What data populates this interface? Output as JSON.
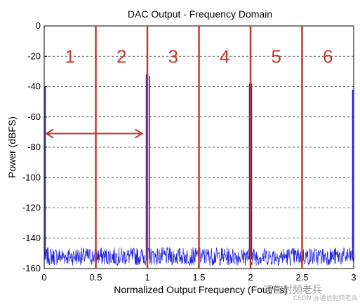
{
  "chart_data": {
    "type": "line",
    "title": "DAC Output - Frequency Domain",
    "xlabel": "Normalized Output Frequency (Fout/Fs)",
    "ylabel": "Power (dBFS)",
    "xlim": [
      0,
      3
    ],
    "ylim": [
      -160,
      0
    ],
    "x_ticks": [
      "0",
      "0.5",
      "1",
      "1.5",
      "2",
      "2.5",
      "3"
    ],
    "y_ticks": [
      "0",
      "-20",
      "-40",
      "-60",
      "-80",
      "-100",
      "-120",
      "-140",
      "-160"
    ],
    "grid": true,
    "series_color": "#1f1fd6",
    "noise_floor": [
      -160,
      -146
    ],
    "spurs": [
      {
        "x": 0.01,
        "y": -40
      },
      {
        "x": 0.99,
        "y": -32
      },
      {
        "x": 1.02,
        "y": -33
      },
      {
        "x": 1.99,
        "y": -38
      },
      {
        "x": 2.01,
        "y": -38
      },
      {
        "x": 2.99,
        "y": -42
      }
    ],
    "zone_boundaries": [
      0.5,
      1,
      1.5,
      2,
      2.5
    ],
    "boundary_color": "#c0392b",
    "zone_labels": [
      {
        "text": "1",
        "x": 0.25
      },
      {
        "text": "2",
        "x": 0.75
      },
      {
        "text": "3",
        "x": 1.25
      },
      {
        "text": "4",
        "x": 1.75
      },
      {
        "text": "5",
        "x": 2.25
      },
      {
        "text": "6",
        "x": 2.75
      }
    ],
    "zone_label_y": -20,
    "arrow": {
      "x_from": 0.02,
      "x_to": 0.95,
      "y": -71
    }
  },
  "watermark": {
    "text": "通信射频老兵",
    "subtext": "CSDN @通信射频老兵"
  }
}
